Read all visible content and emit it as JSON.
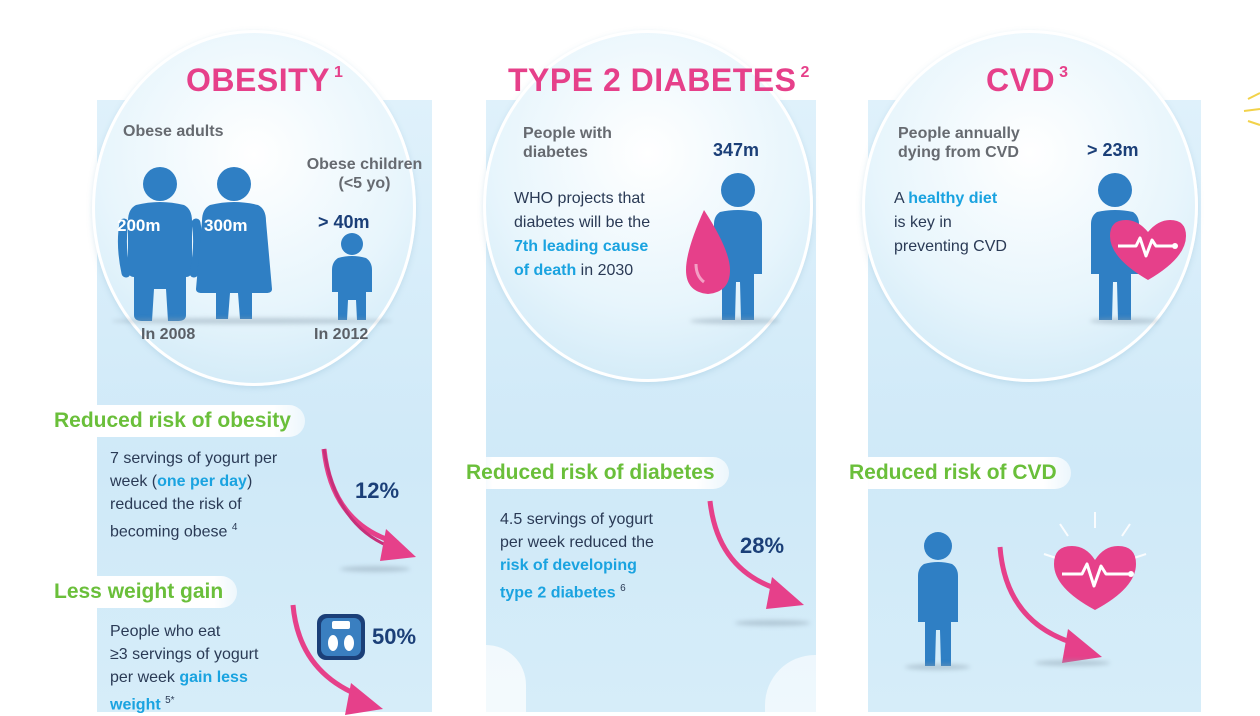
{
  "obesity": {
    "title": "OBESITY",
    "title_ref": "1",
    "adults_label": "Obese adults",
    "children_label": "Obese children (<5 yo)",
    "adults_val_1": "200m",
    "adults_val_2": "300m",
    "children_val": "> 40m",
    "adults_year": "In 2008",
    "children_year": "In 2012",
    "reduced_head": "Reduced risk of obesity",
    "reduced_text_1": "7 servings of yogurt per",
    "reduced_text_2a": "week (",
    "reduced_text_hl": "one per day",
    "reduced_text_2b": ")",
    "reduced_text_3": "reduced the risk of",
    "reduced_text_4": "becoming obese",
    "reduced_ref": "4",
    "reduced_pct": "12%",
    "weight_head": "Less weight gain",
    "weight_text_1": "People who eat",
    "weight_text_2": "≥3 servings of yogurt",
    "weight_text_3a": "per week ",
    "weight_text_hl_1": "gain less",
    "weight_text_hl_2": "weight",
    "weight_ref": "5*",
    "weight_pct": "50%"
  },
  "diabetes": {
    "title": "TYPE 2 DIABETES",
    "title_ref": "2",
    "people_label_1": "People with",
    "people_label_2": "diabetes",
    "people_val": "347m",
    "who_text_1": "WHO projects that",
    "who_text_2": "diabetes will be the",
    "who_hl_1": "7th leading cause",
    "who_hl_2": "of death",
    "who_text_3": " in 2030",
    "reduced_head": "Reduced risk of diabetes",
    "reduced_text_1": "4.5 servings of yogurt",
    "reduced_text_2": "per week reduced the",
    "reduced_hl_1": "risk of developing",
    "reduced_hl_2": "type 2 diabetes",
    "reduced_ref": "6",
    "reduced_pct": "28%"
  },
  "cvd": {
    "title": "CVD",
    "title_ref": "3",
    "people_label_1": "People annually",
    "people_label_2": "dying from CVD",
    "people_val": "> 23m",
    "diet_text_1a": "A ",
    "diet_hl": "healthy diet",
    "diet_text_2": "is key in",
    "diet_text_3": "preventing CVD",
    "reduced_head": "Reduced risk of CVD"
  },
  "colors": {
    "pink": "#e6408a",
    "green": "#6abf3a",
    "navy": "#1b3f78",
    "cyan": "#1aa3e0",
    "figure_blue": "#2f7fc4"
  }
}
